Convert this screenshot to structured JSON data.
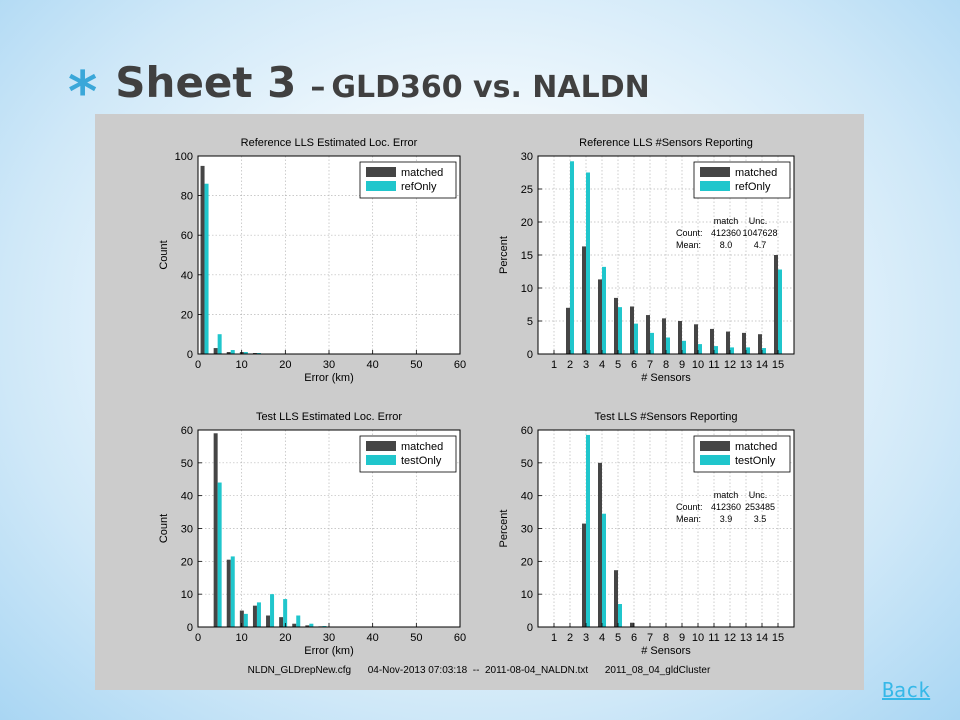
{
  "slide": {
    "bullet": "*",
    "title_main": "Sheet 3",
    "title_sep": "–",
    "title_sub": "GLD360 vs. NALDN",
    "back_link": "Back"
  },
  "colors": {
    "matched": "#454545",
    "secondary": "#20c6cc",
    "figure_bg": "#cccccc",
    "grid": "#b8b8b8"
  },
  "footer": "NLDN_GLDrepNew.cfg      04-Nov-2013 07:03:18  --  2011-08-04_NALDN.txt      2011_08_04_gldCluster",
  "chart_data": [
    {
      "id": "ref-error",
      "type": "bar",
      "title": "Reference LLS Estimated Loc. Error",
      "xlabel": "Error (km)",
      "ylabel": "Count",
      "xlim": [
        0,
        60
      ],
      "ylim": [
        0,
        100
      ],
      "xticks": [
        0,
        10,
        20,
        30,
        40,
        50,
        60
      ],
      "yticks": [
        0,
        20,
        40,
        60,
        80,
        100
      ],
      "grid": true,
      "legend": "top-right",
      "x": [
        1.5,
        4.5,
        7.5,
        10.5,
        13.5
      ],
      "series": [
        {
          "name": "matched",
          "values": [
            95,
            3,
            1,
            1,
            0.5
          ]
        },
        {
          "name": "refOnly",
          "values": [
            86,
            10,
            2,
            1,
            0.5
          ]
        }
      ]
    },
    {
      "id": "ref-sensors",
      "type": "bar",
      "title": "Reference LLS #Sensors Reporting",
      "xlabel": "# Sensors",
      "ylabel": "Percent",
      "ylim": [
        0,
        30
      ],
      "yticks": [
        0,
        5,
        10,
        15,
        20,
        25,
        30
      ],
      "grid": true,
      "legend": "top-right",
      "categories": [
        "1",
        "2",
        "3",
        "4",
        "5",
        "6",
        "7",
        "8",
        "9",
        "10",
        "11",
        "12",
        "13",
        "14",
        "15"
      ],
      "series": [
        {
          "name": "matched",
          "values": [
            0,
            7,
            16.3,
            11.3,
            8.5,
            7.2,
            5.9,
            5.4,
            5.0,
            4.5,
            3.8,
            3.4,
            3.2,
            3.0,
            15
          ]
        },
        {
          "name": "refOnly",
          "values": [
            0,
            29.2,
            27.5,
            13.2,
            7.1,
            4.6,
            3.2,
            2.5,
            2.0,
            1.5,
            1.2,
            1.0,
            1.0,
            0.9,
            12.8
          ]
        }
      ],
      "stats": {
        "header": [
          "match",
          "Unc."
        ],
        "rows": [
          {
            "label": "Count:",
            "values": [
              "412360",
              "1047628"
            ]
          },
          {
            "label": "Mean:",
            "values": [
              "8.0",
              "4.7"
            ]
          }
        ]
      }
    },
    {
      "id": "test-error",
      "type": "bar",
      "title": "Test LLS Estimated Loc. Error",
      "xlabel": "Error (km)",
      "ylabel": "Count",
      "xlim": [
        0,
        60
      ],
      "ylim": [
        0,
        60
      ],
      "xticks": [
        0,
        10,
        20,
        30,
        40,
        50,
        60
      ],
      "yticks": [
        0,
        10,
        20,
        30,
        40,
        50,
        60
      ],
      "grid": true,
      "legend": "top-right",
      "x": [
        4.5,
        7.5,
        10.5,
        13.5,
        16.5,
        19.5,
        22.5,
        25.5,
        28.5
      ],
      "series": [
        {
          "name": "matched",
          "values": [
            59,
            20.5,
            5,
            6.5,
            3.5,
            3,
            1,
            0.5,
            0.2
          ]
        },
        {
          "name": "testOnly",
          "values": [
            44,
            21.5,
            4,
            7.5,
            10,
            8.5,
            3.5,
            1,
            0.3
          ]
        }
      ]
    },
    {
      "id": "test-sensors",
      "type": "bar",
      "title": "Test LLS #Sensors Reporting",
      "xlabel": "# Sensors",
      "ylabel": "Percent",
      "ylim": [
        0,
        60
      ],
      "yticks": [
        0,
        10,
        20,
        30,
        40,
        50,
        60
      ],
      "grid": true,
      "legend": "top-right",
      "categories": [
        "1",
        "2",
        "3",
        "4",
        "5",
        "6",
        "7",
        "8",
        "9",
        "10",
        "11",
        "12",
        "13",
        "14",
        "15"
      ],
      "series": [
        {
          "name": "matched",
          "values": [
            0,
            0,
            31.5,
            50,
            17.3,
            1.3,
            0,
            0,
            0,
            0,
            0,
            0,
            0,
            0,
            0
          ]
        },
        {
          "name": "testOnly",
          "values": [
            0,
            0,
            58.5,
            34.5,
            7,
            0,
            0,
            0,
            0,
            0,
            0,
            0,
            0,
            0,
            0
          ]
        }
      ],
      "stats": {
        "header": [
          "match",
          "Unc."
        ],
        "rows": [
          {
            "label": "Count:",
            "values": [
              "412360",
              "253485"
            ]
          },
          {
            "label": "Mean:",
            "values": [
              "3.9",
              "3.5"
            ]
          }
        ]
      }
    }
  ]
}
